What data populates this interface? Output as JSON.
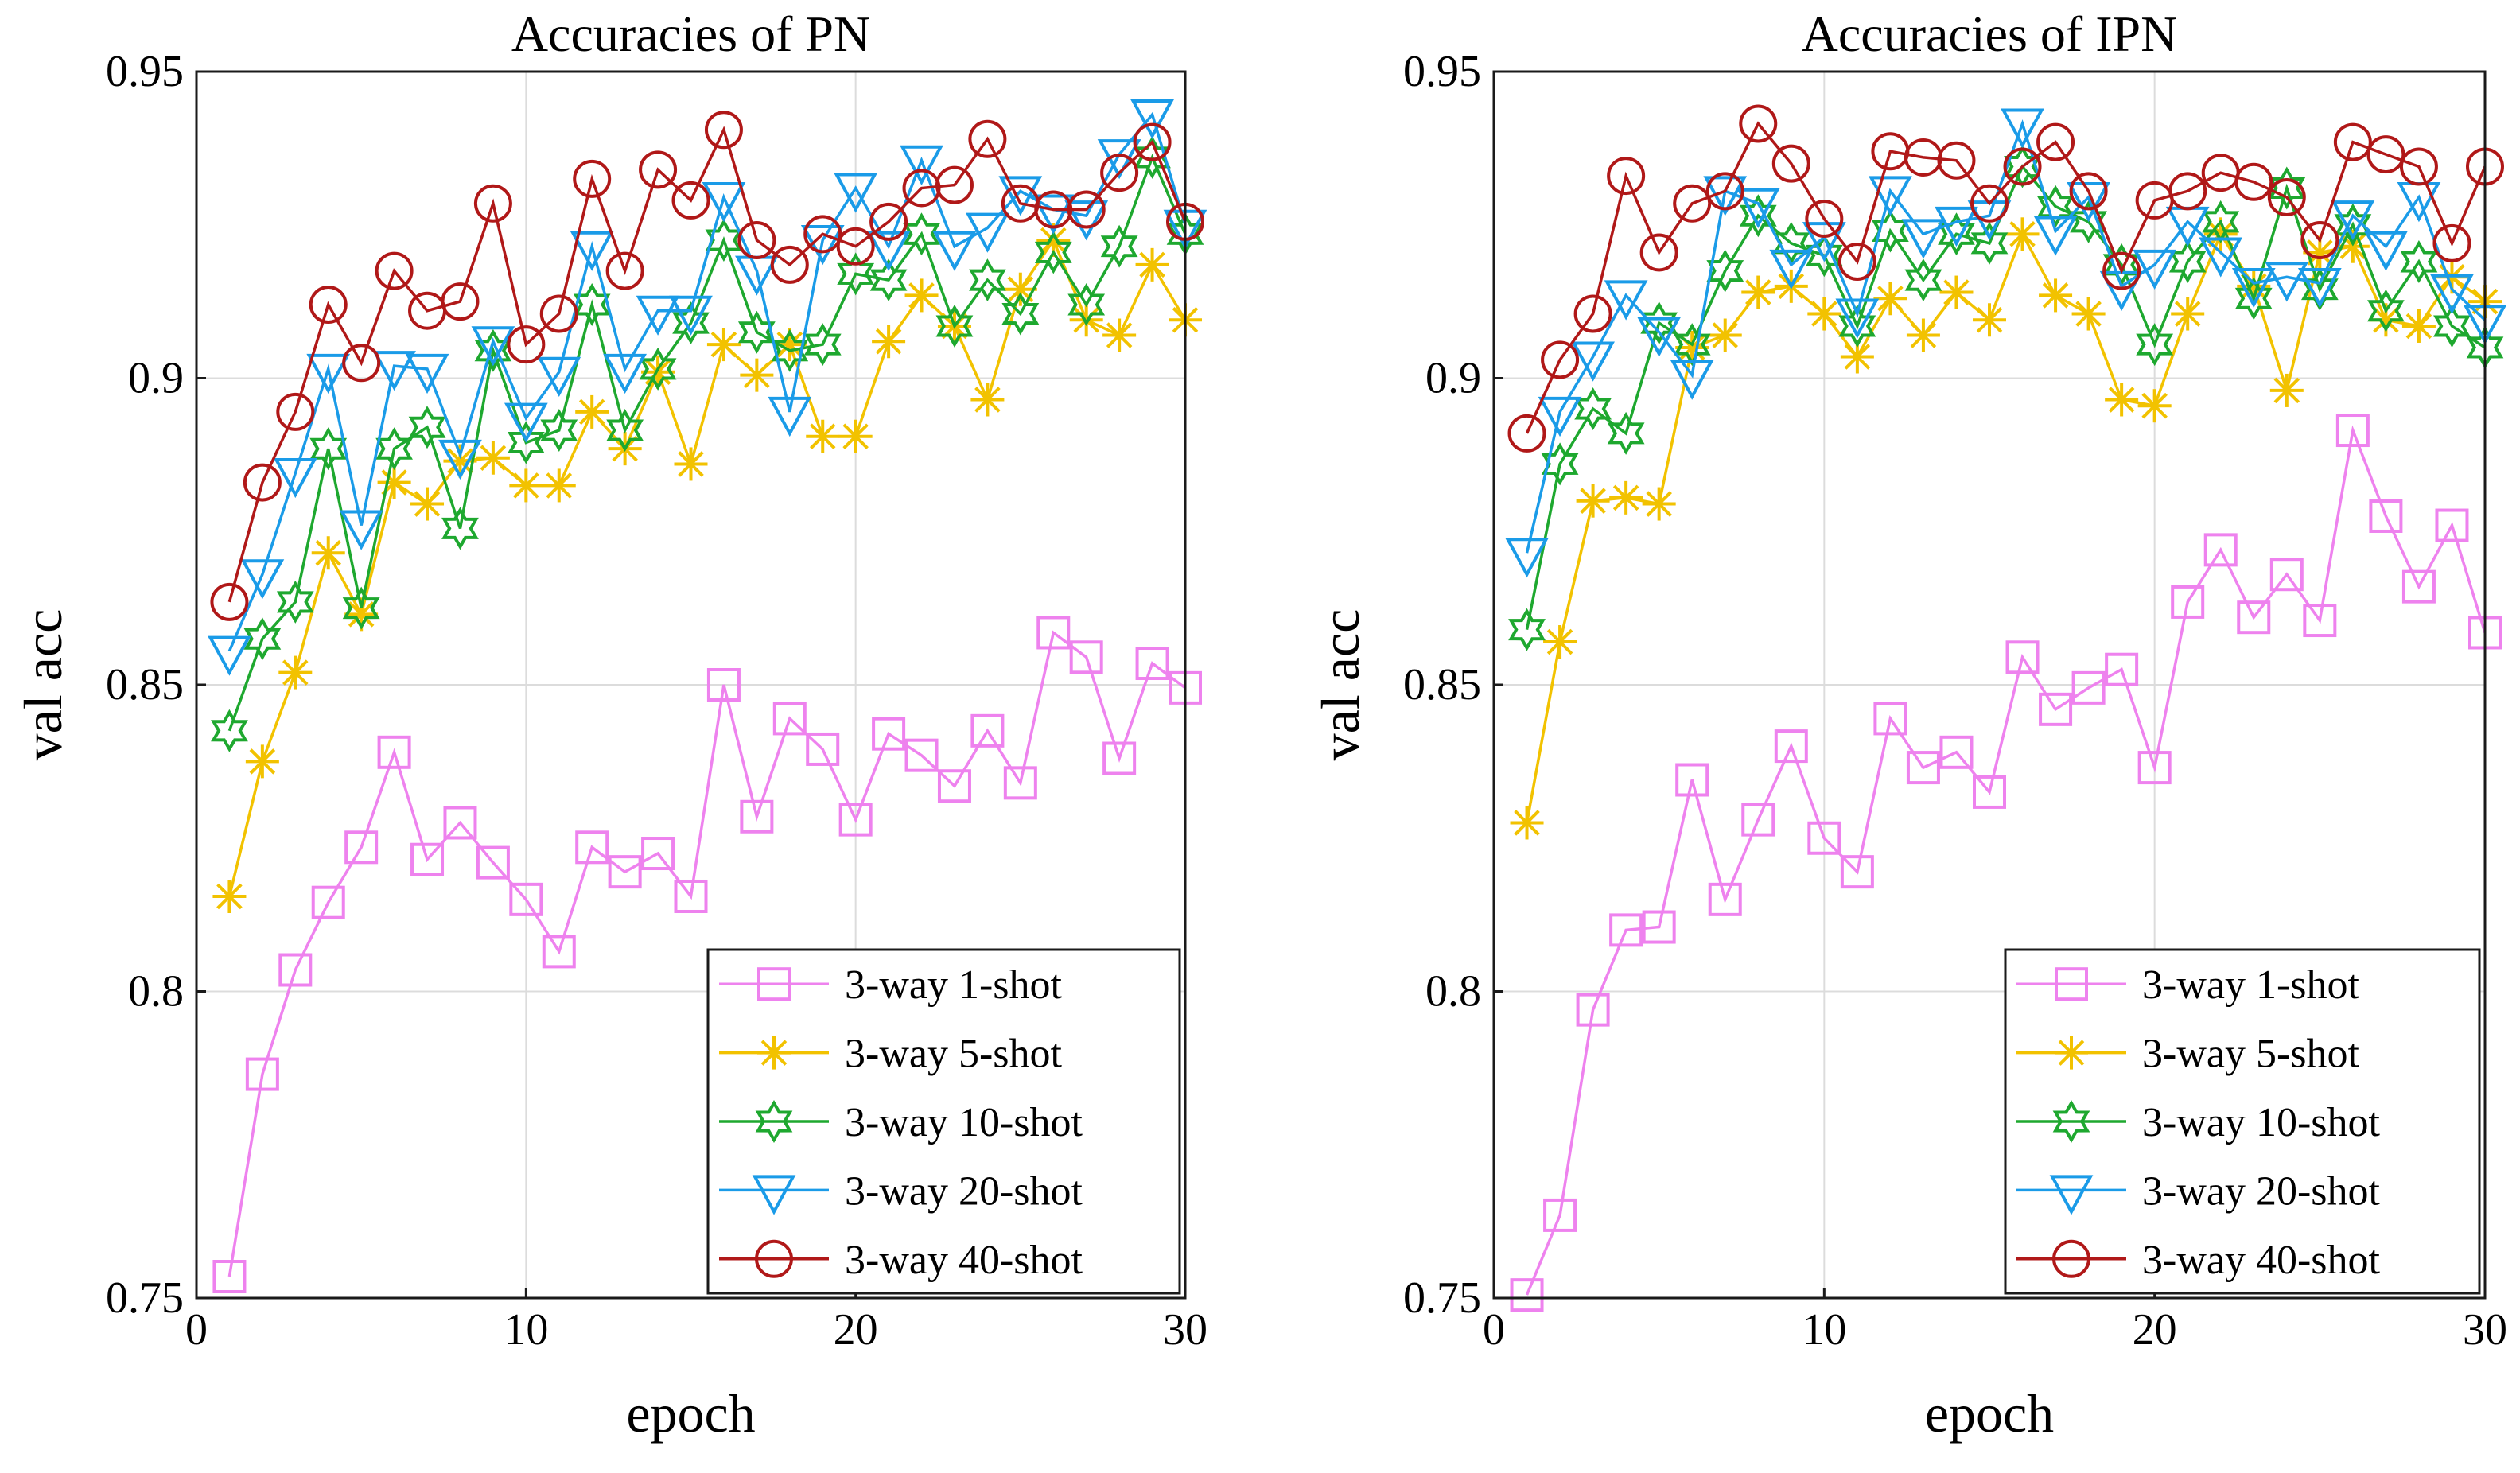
{
  "colors": {
    "1-shot": "#ee82ee",
    "5-shot": "#f2c200",
    "10-shot": "#1ea82f",
    "20-shot": "#1a9be8",
    "40-shot": "#b01818"
  },
  "chart_data": [
    {
      "type": "line",
      "title": "Accuracies of PN",
      "xlabel": "epoch",
      "ylabel": "val acc",
      "xlim": [
        0,
        30
      ],
      "ylim": [
        0.75,
        0.95
      ],
      "xticks": [
        0,
        10,
        20,
        30
      ],
      "xtick_labels": [
        "0",
        "10",
        "20",
        "30"
      ],
      "yticks": [
        0.75,
        0.8,
        0.85,
        0.9,
        0.95
      ],
      "ytick_labels": [
        "0.75",
        "0.8",
        "0.85",
        "0.9",
        "0.95"
      ],
      "grid": true,
      "legend": "bottom-right",
      "x": [
        1,
        2,
        3,
        4,
        5,
        6,
        7,
        8,
        9,
        10,
        11,
        12,
        13,
        14,
        15,
        16,
        17,
        18,
        19,
        20,
        21,
        22,
        23,
        24,
        25,
        26,
        27,
        28,
        29,
        30
      ],
      "series": [
        {
          "name": "3-way 1-shot",
          "key": "1-shot",
          "marker": "square",
          "values": [
            0.7535,
            0.7865,
            0.8035,
            0.8145,
            0.8235,
            0.839,
            0.8215,
            0.8275,
            0.821,
            0.815,
            0.8065,
            0.8235,
            0.8195,
            0.8225,
            0.8155,
            0.85,
            0.8285,
            0.8445,
            0.8395,
            0.828,
            0.842,
            0.8385,
            0.8335,
            0.8425,
            0.834,
            0.8585,
            0.8545,
            0.838,
            0.8535,
            0.8495
          ]
        },
        {
          "name": "3-way 5-shot",
          "key": "5-shot",
          "marker": "asterisk",
          "values": [
            0.8155,
            0.8375,
            0.852,
            0.8715,
            0.8615,
            0.883,
            0.8795,
            0.8865,
            0.887,
            0.8825,
            0.8825,
            0.8945,
            0.8885,
            0.901,
            0.886,
            0.9055,
            0.9005,
            0.9055,
            0.8905,
            0.8905,
            0.906,
            0.9135,
            0.9085,
            0.8965,
            0.9145,
            0.9225,
            0.9095,
            0.907,
            0.9185,
            0.9095
          ]
        },
        {
          "name": "3-way 10-shot",
          "key": "10-shot",
          "marker": "hexagram",
          "values": [
            0.8425,
            0.8575,
            0.8635,
            0.8885,
            0.8625,
            0.8885,
            0.892,
            0.8755,
            0.9045,
            0.8895,
            0.8915,
            0.912,
            0.8915,
            0.9015,
            0.909,
            0.9225,
            0.9075,
            0.9045,
            0.9055,
            0.917,
            0.916,
            0.9235,
            0.9085,
            0.916,
            0.9105,
            0.9205,
            0.912,
            0.9215,
            0.936,
            0.9235
          ]
        },
        {
          "name": "3-way 20-shot",
          "key": "20-shot",
          "marker": "triangle-down",
          "values": [
            0.8555,
            0.868,
            0.8845,
            0.9015,
            0.876,
            0.902,
            0.9015,
            0.8875,
            0.906,
            0.8935,
            0.901,
            0.9215,
            0.9015,
            0.911,
            0.911,
            0.9295,
            0.9175,
            0.8945,
            0.9225,
            0.931,
            0.9215,
            0.9355,
            0.9215,
            0.9245,
            0.9305,
            0.9275,
            0.9265,
            0.9365,
            0.943,
            0.925
          ]
        },
        {
          "name": "3-way 40-shot",
          "key": "40-shot",
          "marker": "circle",
          "values": [
            0.8635,
            0.883,
            0.8945,
            0.912,
            0.9025,
            0.9175,
            0.911,
            0.9125,
            0.9285,
            0.9055,
            0.9105,
            0.9325,
            0.9175,
            0.934,
            0.929,
            0.9405,
            0.9225,
            0.9185,
            0.9235,
            0.9215,
            0.9255,
            0.931,
            0.9315,
            0.939,
            0.9285,
            0.9275,
            0.9275,
            0.9335,
            0.9385,
            0.9255
          ]
        }
      ]
    },
    {
      "type": "line",
      "title": "Accuracies of IPN",
      "xlabel": "epoch",
      "ylabel": "val acc",
      "xlim": [
        0,
        30
      ],
      "ylim": [
        0.75,
        0.95
      ],
      "xticks": [
        0,
        10,
        20,
        30
      ],
      "xtick_labels": [
        "0",
        "10",
        "20",
        "30"
      ],
      "yticks": [
        0.75,
        0.8,
        0.85,
        0.9,
        0.95
      ],
      "ytick_labels": [
        "0.75",
        "0.8",
        "0.85",
        "0.9",
        "0.95"
      ],
      "grid": true,
      "legend": "bottom-right",
      "x": [
        1,
        2,
        3,
        4,
        5,
        6,
        7,
        8,
        9,
        10,
        11,
        12,
        13,
        14,
        15,
        16,
        17,
        18,
        19,
        20,
        21,
        22,
        23,
        24,
        25,
        26,
        27,
        28,
        29,
        30
      ],
      "series": [
        {
          "name": "3-way 1-shot",
          "key": "1-shot",
          "marker": "square",
          "values": [
            0.7505,
            0.7635,
            0.797,
            0.81,
            0.8105,
            0.8345,
            0.815,
            0.828,
            0.84,
            0.825,
            0.8195,
            0.8445,
            0.8365,
            0.839,
            0.8325,
            0.8545,
            0.846,
            0.8495,
            0.8525,
            0.8365,
            0.8635,
            0.872,
            0.861,
            0.868,
            0.8605,
            0.8915,
            0.8775,
            0.866,
            0.876,
            0.8585
          ]
        },
        {
          "name": "3-way 5-shot",
          "key": "5-shot",
          "marker": "asterisk",
          "values": [
            0.8275,
            0.857,
            0.88,
            0.8805,
            0.8795,
            0.905,
            0.907,
            0.914,
            0.915,
            0.9105,
            0.9035,
            0.913,
            0.907,
            0.914,
            0.9095,
            0.9235,
            0.9135,
            0.9105,
            0.8965,
            0.8955,
            0.9105,
            0.9235,
            0.915,
            0.898,
            0.9205,
            0.9215,
            0.9095,
            0.9085,
            0.9165,
            0.9125
          ]
        },
        {
          "name": "3-way 10-shot",
          "key": "10-shot",
          "marker": "hexagram",
          "values": [
            0.859,
            0.886,
            0.895,
            0.891,
            0.909,
            0.9055,
            0.9175,
            0.9265,
            0.922,
            0.92,
            0.9085,
            0.924,
            0.916,
            0.9235,
            0.922,
            0.9345,
            0.928,
            0.9255,
            0.9185,
            0.9055,
            0.919,
            0.9255,
            0.913,
            0.931,
            0.9145,
            0.925,
            0.911,
            0.919,
            0.9085,
            0.905
          ]
        },
        {
          "name": "3-way 20-shot",
          "key": "20-shot",
          "marker": "triangle-down",
          "values": [
            0.8715,
            0.8945,
            0.9035,
            0.9135,
            0.9075,
            0.9005,
            0.9305,
            0.9285,
            0.9185,
            0.923,
            0.9105,
            0.9305,
            0.9235,
            0.9255,
            0.9265,
            0.9415,
            0.924,
            0.9295,
            0.915,
            0.9185,
            0.9255,
            0.9205,
            0.9155,
            0.9165,
            0.9155,
            0.9265,
            0.9215,
            0.9295,
            0.9145,
            0.9095
          ]
        },
        {
          "name": "3-way 40-shot",
          "key": "40-shot",
          "marker": "circle",
          "values": [
            0.891,
            0.903,
            0.9105,
            0.933,
            0.9205,
            0.9285,
            0.9305,
            0.9415,
            0.935,
            0.926,
            0.919,
            0.937,
            0.936,
            0.9355,
            0.9285,
            0.9345,
            0.9385,
            0.9305,
            0.9175,
            0.929,
            0.9305,
            0.9335,
            0.932,
            0.9295,
            0.9225,
            0.9385,
            0.9365,
            0.9345,
            0.922,
            0.9345
          ]
        }
      ]
    }
  ]
}
